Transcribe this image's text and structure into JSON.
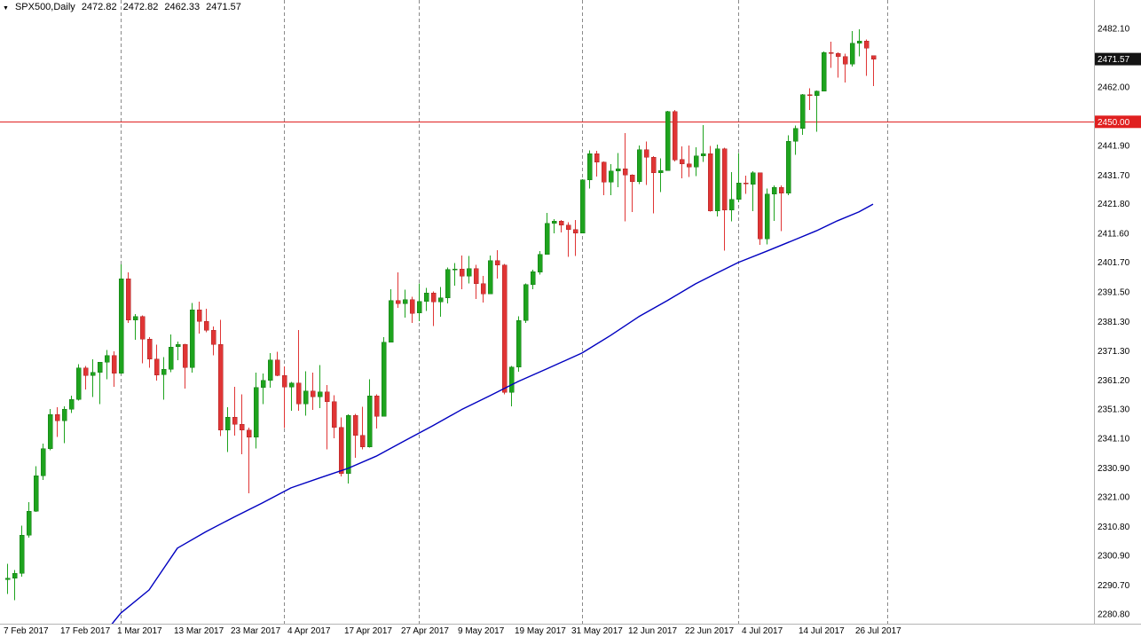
{
  "header": {
    "symbol": "SPX500,Daily",
    "open": "2472.82",
    "high": "2472.82",
    "low": "2462.33",
    "close": "2471.57"
  },
  "icons": {
    "chart_menu": "▼"
  },
  "colors": {
    "up": "#1ea31e",
    "up_border": "#127812",
    "down": "#e03535",
    "down_border": "#aa2424",
    "ma": "#0000c0",
    "hline": "#e02020",
    "separator": "#8a8a8a",
    "axis_border": "#b5b5b5",
    "axis_text": "#000000",
    "bid_badge_bg": "#141414",
    "hline_badge_bg": "#e02020",
    "badge_text": "#ffffff",
    "background": "#ffffff"
  },
  "chart_data": {
    "type": "candlestick",
    "symbol": "SPX500",
    "timeframe": "Daily",
    "grid": "period-separators-only",
    "price_axis": {
      "top_price": 2491.9,
      "bottom_price": 2277.4,
      "labels": [
        "2482.10",
        "2462.00",
        "2441.90",
        "2431.70",
        "2421.80",
        "2411.60",
        "2401.70",
        "2391.50",
        "2381.30",
        "2371.30",
        "2361.20",
        "2351.30",
        "2341.10",
        "2330.90",
        "2321.00",
        "2310.80",
        "2300.90",
        "2290.70",
        "2280.80"
      ]
    },
    "time_axis": {
      "first_index": 0,
      "step": 8,
      "labels": [
        "7 Feb 2017",
        "17 Feb 2017",
        "1 Mar 2017",
        "13 Mar 2017",
        "23 Mar 2017",
        "4 Apr 2017",
        "17 Apr 2017",
        "27 Apr 2017",
        "9 May 2017",
        "19 May 2017",
        "31 May 2017",
        "12 Jun 2017",
        "22 Jun 2017",
        "4 Jul 2017",
        "14 Jul 2017",
        "26 Jul 2017"
      ]
    },
    "horizontal_line": {
      "price": 2450.0,
      "label": "2450.00"
    },
    "current_price": {
      "value": 2471.57,
      "label": "2471.57"
    },
    "month_separators": [
      16,
      39,
      58,
      81,
      103,
      124
    ],
    "candles": [
      [
        2292.6,
        2298.0,
        2287.6,
        2293.1
      ],
      [
        2293.1,
        2295.9,
        2285.5,
        2294.7
      ],
      [
        2294.7,
        2311.1,
        2293.6,
        2307.9
      ],
      [
        2307.9,
        2319.2,
        2307.0,
        2316.1
      ],
      [
        2316.1,
        2331.6,
        2315.9,
        2328.3
      ],
      [
        2328.3,
        2339.3,
        2326.8,
        2337.6
      ],
      [
        2337.6,
        2351.3,
        2337.1,
        2349.3
      ],
      [
        2349.3,
        2351.8,
        2341.6,
        2347.2
      ],
      [
        2347.2,
        2352.2,
        2339.5,
        2351.2
      ],
      [
        2351.2,
        2355.8,
        2349.8,
        2354.6
      ],
      [
        2354.6,
        2366.7,
        2354.1,
        2365.4
      ],
      [
        2365.4,
        2366.0,
        2358.0,
        2362.8
      ],
      [
        2362.8,
        2368.3,
        2355.4,
        2363.8
      ],
      [
        2363.8,
        2367.3,
        2352.9,
        2367.3
      ],
      [
        2367.3,
        2371.5,
        2361.5,
        2369.7
      ],
      [
        2369.7,
        2371.1,
        2358.9,
        2363.6
      ],
      [
        2363.6,
        2400.9,
        2363.3,
        2396.0
      ],
      [
        2396.0,
        2398.2,
        2380.8,
        2381.9
      ],
      [
        2381.9,
        2383.9,
        2375.0,
        2383.1
      ],
      [
        2383.1,
        2383.5,
        2367.0,
        2375.3
      ],
      [
        2375.3,
        2375.9,
        2365.5,
        2368.4
      ],
      [
        2368.4,
        2373.4,
        2361.0,
        2363.0
      ],
      [
        2363.0,
        2369.1,
        2354.5,
        2364.9
      ],
      [
        2364.9,
        2376.9,
        2363.9,
        2372.6
      ],
      [
        2372.6,
        2374.4,
        2368.0,
        2373.5
      ],
      [
        2373.5,
        2373.7,
        2358.2,
        2365.5
      ],
      [
        2365.5,
        2387.7,
        2363.7,
        2385.3
      ],
      [
        2385.3,
        2388.1,
        2377.2,
        2381.4
      ],
      [
        2381.4,
        2385.7,
        2377.6,
        2378.3
      ],
      [
        2378.3,
        2379.6,
        2369.7,
        2373.5
      ],
      [
        2373.5,
        2381.9,
        2341.9,
        2344.0
      ],
      [
        2344.0,
        2351.8,
        2336.5,
        2348.5
      ],
      [
        2348.5,
        2358.9,
        2342.1,
        2346.0
      ],
      [
        2346.0,
        2356.2,
        2335.7,
        2344.0
      ],
      [
        2344.0,
        2344.9,
        2322.3,
        2341.6
      ],
      [
        2341.6,
        2363.8,
        2337.6,
        2358.6
      ],
      [
        2358.6,
        2363.4,
        2352.9,
        2361.1
      ],
      [
        2361.1,
        2370.4,
        2358.6,
        2368.1
      ],
      [
        2368.1,
        2370.9,
        2362.6,
        2362.7
      ],
      [
        2362.7,
        2365.9,
        2344.7,
        2358.8
      ],
      [
        2358.8,
        2360.5,
        2350.7,
        2360.2
      ],
      [
        2360.2,
        2378.4,
        2350.7,
        2353.0
      ],
      [
        2353.0,
        2364.2,
        2349.0,
        2357.5
      ],
      [
        2357.5,
        2363.8,
        2350.9,
        2355.5
      ],
      [
        2355.5,
        2366.4,
        2351.5,
        2357.2
      ],
      [
        2357.2,
        2359.5,
        2337.3,
        2353.8
      ],
      [
        2353.8,
        2355.9,
        2341.2,
        2344.9
      ],
      [
        2344.9,
        2348.3,
        2328.0,
        2329.0
      ],
      [
        2329.0,
        2349.4,
        2325.6,
        2349.0
      ],
      [
        2349.0,
        2349.5,
        2334.5,
        2342.2
      ],
      [
        2342.2,
        2352.0,
        2337.3,
        2338.2
      ],
      [
        2338.2,
        2361.4,
        2337.9,
        2355.8
      ],
      [
        2355.8,
        2356.2,
        2344.5,
        2348.7
      ],
      [
        2348.7,
        2376.0,
        2348.7,
        2374.2
      ],
      [
        2374.2,
        2392.4,
        2374.2,
        2388.6
      ],
      [
        2388.6,
        2398.2,
        2386.0,
        2387.5
      ],
      [
        2387.5,
        2392.3,
        2382.7,
        2388.8
      ],
      [
        2388.8,
        2389.9,
        2380.8,
        2384.2
      ],
      [
        2384.2,
        2394.4,
        2381.4,
        2388.3
      ],
      [
        2388.3,
        2392.9,
        2385.0,
        2391.2
      ],
      [
        2391.2,
        2391.7,
        2379.7,
        2388.1
      ],
      [
        2388.1,
        2393.2,
        2383.0,
        2389.5
      ],
      [
        2389.5,
        2399.9,
        2387.5,
        2399.3
      ],
      [
        2399.3,
        2401.4,
        2393.6,
        2399.4
      ],
      [
        2399.4,
        2404.1,
        2392.4,
        2396.9
      ],
      [
        2396.9,
        2403.8,
        2394.4,
        2399.6
      ],
      [
        2399.6,
        2400.8,
        2389.1,
        2394.4
      ],
      [
        2394.4,
        2397.0,
        2387.9,
        2390.9
      ],
      [
        2390.9,
        2404.1,
        2390.7,
        2402.3
      ],
      [
        2402.3,
        2405.8,
        2396.1,
        2400.7
      ],
      [
        2400.7,
        2401.1,
        2356.2,
        2357.0
      ],
      [
        2357.0,
        2366.0,
        2352.1,
        2365.7
      ],
      [
        2365.7,
        2383.1,
        2364.0,
        2381.7
      ],
      [
        2381.7,
        2394.4,
        2380.9,
        2394.0
      ],
      [
        2394.0,
        2399.1,
        2392.4,
        2398.4
      ],
      [
        2398.4,
        2405.6,
        2397.5,
        2404.4
      ],
      [
        2404.4,
        2418.7,
        2404.4,
        2415.1
      ],
      [
        2415.1,
        2416.5,
        2411.7,
        2415.8
      ],
      [
        2415.8,
        2416.3,
        2412.0,
        2414.5
      ],
      [
        2414.5,
        2415.5,
        2403.6,
        2412.9
      ],
      [
        2412.9,
        2416.2,
        2403.8,
        2411.8
      ],
      [
        2411.8,
        2430.3,
        2411.8,
        2430.1
      ],
      [
        2430.1,
        2440.2,
        2427.1,
        2439.1
      ],
      [
        2439.1,
        2440.0,
        2431.2,
        2436.1
      ],
      [
        2436.1,
        2436.4,
        2424.7,
        2429.3
      ],
      [
        2429.3,
        2435.4,
        2424.8,
        2433.1
      ],
      [
        2433.1,
        2439.3,
        2427.5,
        2433.8
      ],
      [
        2433.8,
        2446.2,
        2415.7,
        2431.8
      ],
      [
        2431.8,
        2432.0,
        2419.0,
        2429.4
      ],
      [
        2429.4,
        2441.9,
        2428.6,
        2440.4
      ],
      [
        2440.4,
        2443.2,
        2428.3,
        2437.9
      ],
      [
        2437.9,
        2438.2,
        2418.5,
        2432.5
      ],
      [
        2432.5,
        2437.4,
        2425.9,
        2433.2
      ],
      [
        2433.2,
        2453.8,
        2433.2,
        2453.5
      ],
      [
        2453.5,
        2454.0,
        2436.4,
        2437.0
      ],
      [
        2437.0,
        2441.6,
        2430.6,
        2435.6
      ],
      [
        2435.6,
        2441.9,
        2431.1,
        2434.5
      ],
      [
        2434.5,
        2441.2,
        2431.4,
        2438.3
      ],
      [
        2438.3,
        2448.9,
        2436.2,
        2439.1
      ],
      [
        2439.1,
        2441.7,
        2419.2,
        2419.4
      ],
      [
        2419.4,
        2442.2,
        2417.4,
        2440.7
      ],
      [
        2440.7,
        2441.1,
        2405.7,
        2419.7
      ],
      [
        2419.7,
        2432.7,
        2415.8,
        2423.4
      ],
      [
        2423.4,
        2439.2,
        2422.4,
        2429.0
      ],
      [
        2429.0,
        2431.5,
        2425.2,
        2428.6
      ],
      [
        2428.6,
        2433.0,
        2419.3,
        2432.5
      ],
      [
        2432.5,
        2432.6,
        2407.7,
        2409.8
      ],
      [
        2409.8,
        2427.1,
        2407.9,
        2425.2
      ],
      [
        2425.2,
        2428.1,
        2415.9,
        2427.4
      ],
      [
        2427.4,
        2428.2,
        2412.4,
        2425.5
      ],
      [
        2425.5,
        2445.3,
        2424.8,
        2443.3
      ],
      [
        2443.3,
        2448.7,
        2438.6,
        2447.8
      ],
      [
        2447.8,
        2459.5,
        2445.5,
        2459.3
      ],
      [
        2459.3,
        2461.6,
        2454.0,
        2459.1
      ],
      [
        2459.1,
        2460.8,
        2446.6,
        2460.6
      ],
      [
        2460.6,
        2474.2,
        2460.4,
        2473.8
      ],
      [
        2473.8,
        2477.6,
        2468.5,
        2473.5
      ],
      [
        2473.5,
        2473.9,
        2465.2,
        2472.5
      ],
      [
        2472.5,
        2473.4,
        2463.5,
        2469.9
      ],
      [
        2469.9,
        2481.2,
        2469.0,
        2477.1
      ],
      [
        2477.1,
        2481.9,
        2472.5,
        2477.8
      ],
      [
        2477.8,
        2478.3,
        2465.8,
        2475.4
      ],
      [
        2472.82,
        2472.82,
        2462.33,
        2471.57
      ]
    ],
    "ma_line": {
      "name": "moving-average",
      "points": [
        [
          14,
          2275.0
        ],
        [
          16,
          2281.0
        ],
        [
          20,
          2289.0
        ],
        [
          24,
          2303.4
        ],
        [
          28,
          2309.0
        ],
        [
          32,
          2314.1
        ],
        [
          36,
          2319.0
        ],
        [
          40,
          2324.1
        ],
        [
          44,
          2327.5
        ],
        [
          48,
          2330.8
        ],
        [
          52,
          2335.0
        ],
        [
          56,
          2340.3
        ],
        [
          60,
          2345.5
        ],
        [
          64,
          2351.0
        ],
        [
          68,
          2355.8
        ],
        [
          72,
          2360.7
        ],
        [
          76,
          2365.0
        ],
        [
          81,
          2370.5
        ],
        [
          85,
          2376.5
        ],
        [
          89,
          2383.0
        ],
        [
          93,
          2388.5
        ],
        [
          97,
          2394.3
        ],
        [
          100,
          2398.0
        ],
        [
          103,
          2401.6
        ],
        [
          107,
          2405.5
        ],
        [
          111,
          2409.5
        ],
        [
          114,
          2412.5
        ],
        [
          117,
          2416.0
        ],
        [
          120,
          2419.0
        ],
        [
          122,
          2421.7
        ]
      ]
    }
  }
}
